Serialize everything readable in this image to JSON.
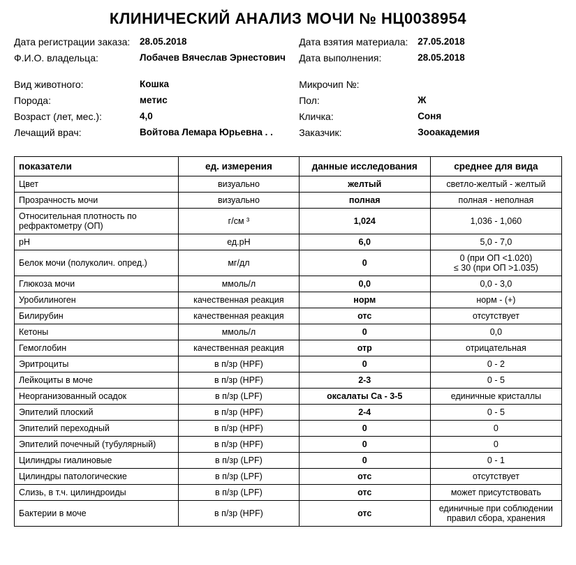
{
  "title": "КЛИНИЧЕСКИЙ АНАЛИЗ МОЧИ  № НЦ0038954",
  "meta": {
    "left": [
      {
        "label": "Дата регистрации заказа:",
        "value": "28.05.2018"
      },
      {
        "label": "Ф.И.О. владельца:",
        "value": "Лобачев Вячеслав Эрнестович",
        "tall": true
      },
      {
        "label": "Вид животного:",
        "value": "Кошка"
      },
      {
        "label": "Порода:",
        "value": "метис"
      },
      {
        "label": "Возраст (лет, мес.):",
        "value": "4,0"
      },
      {
        "label": "Лечащий врач:",
        "value": "Войтова Лемара Юрьевна . .",
        "tall": true
      }
    ],
    "right": [
      {
        "label": "Дата взятия материала:",
        "value": "27.05.2018"
      },
      {
        "label": "Дата выполнения:",
        "value": "28.05.2018",
        "tall": true
      },
      {
        "label": "Микрочип №:",
        "value": ""
      },
      {
        "label": "Пол:",
        "value": "Ж"
      },
      {
        "label": "Кличка:",
        "value": "Соня"
      },
      {
        "label": "Заказчик:",
        "value": "Зооакадемия",
        "tall": true
      }
    ]
  },
  "table": {
    "headers": [
      "показатели",
      "ед. измерения",
      "данные исследования",
      "среднее для вида"
    ],
    "rows": [
      {
        "param": "Цвет",
        "unit": "визуально",
        "result": "желтый",
        "ref": "светло-желтый - желтый"
      },
      {
        "param": "Прозрачность мочи",
        "unit": "визуально",
        "result": "полная",
        "ref": "полная - неполная"
      },
      {
        "param": "Относительная плотность по рефрактометру (ОП)",
        "unit": "г/см ³",
        "result": "1,024",
        "ref": "1,036 - 1,060"
      },
      {
        "param": "pH",
        "unit": "ед.pH",
        "result": "6,0",
        "ref": "5,0 - 7,0"
      },
      {
        "param": "Белок мочи (полуколич. опред.)",
        "unit": "мг/дл",
        "result": "0",
        "ref": "0 (при ОП <1.020)\n≤ 30 (при ОП >1.035)"
      },
      {
        "param": "Глюкоза мочи",
        "unit": "ммоль/л",
        "result": "0,0",
        "ref": "0,0 - 3,0"
      },
      {
        "param": "Уробилиноген",
        "unit": "качественная реакция",
        "result": "норм",
        "ref": "норм - (+)"
      },
      {
        "param": "Билирубин",
        "unit": "качественная реакция",
        "result": "отс",
        "ref": "отсутствует"
      },
      {
        "param": "Кетоны",
        "unit": "ммоль/л",
        "result": "0",
        "ref": "0,0"
      },
      {
        "param": "Гемоглобин",
        "unit": "качественная реакция",
        "result": "отр",
        "ref": "отрицательная"
      },
      {
        "param": "Эритроциты",
        "unit": "в п/зр (HPF)",
        "result": "0",
        "ref": "0 - 2"
      },
      {
        "param": "Лейкоциты в моче",
        "unit": "в п/зр (HPF)",
        "result": "2-3",
        "ref": "0 - 5"
      },
      {
        "param": "Неорганизованный осадок",
        "unit": "в п/зр (LPF)",
        "result": "оксалаты Ca - 3-5",
        "ref": "единичные кристаллы"
      },
      {
        "param": "Эпителий плоский",
        "unit": "в п/зр (HPF)",
        "result": "2-4",
        "ref": "0 - 5"
      },
      {
        "param": "Эпителий переходный",
        "unit": "в п/зр (HPF)",
        "result": "0",
        "ref": "0"
      },
      {
        "param": "Эпителий почечный (тубулярный)",
        "unit": "в п/зр (HPF)",
        "result": "0",
        "ref": "0"
      },
      {
        "param": "Цилиндры гиалиновые",
        "unit": "в п/зр (LPF)",
        "result": "0",
        "ref": "0 - 1"
      },
      {
        "param": "Цилиндры патологические",
        "unit": "в п/зр (LPF)",
        "result": "отс",
        "ref": "отсутствует"
      },
      {
        "param": "Слизь, в т.ч. цилиндроиды",
        "unit": "в п/зр (LPF)",
        "result": "отс",
        "ref": "может присутствовать"
      },
      {
        "param": "Бактерии в моче",
        "unit": "в п/зр (HPF)",
        "result": "отс",
        "ref": "единичные при соблюдении правил сбора, хранения"
      }
    ],
    "col_widths": [
      "30%",
      "22%",
      "24%",
      "24%"
    ]
  }
}
